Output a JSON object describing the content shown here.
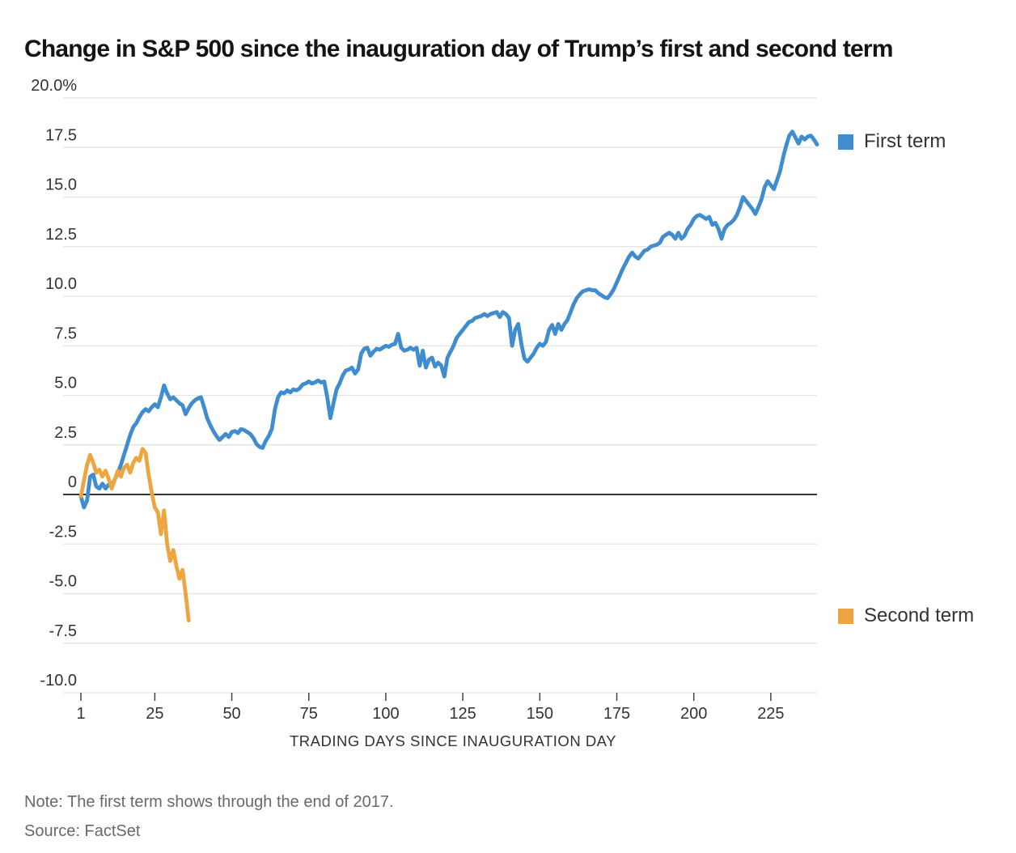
{
  "title": "Change in S&P 500 since the inauguration day of Trump’s first and second term",
  "note": "Note: The first term shows through the end of 2017.",
  "source": "Source: FactSet",
  "legend": [
    {
      "label": "First term",
      "color": "#3f8dce"
    },
    {
      "label": "Second term",
      "color": "#eda63f"
    }
  ],
  "chart_data": {
    "type": "line",
    "title": "Change in S&P 500 since the inauguration day of Trump’s first and second term",
    "xlabel": "TRADING DAYS SINCE INAUGURATION DAY",
    "ylabel": "",
    "grid": true,
    "zero_line": true,
    "legend_position": "right",
    "x_axis": {
      "min": 1,
      "max": 240,
      "ticks": [
        1,
        25,
        50,
        75,
        100,
        125,
        150,
        175,
        200,
        225
      ]
    },
    "y_axis": {
      "min": -10,
      "max": 20,
      "step": 2.5,
      "ticks": [
        {
          "value": 20,
          "label": "20.0%"
        },
        {
          "value": 17.5,
          "label": "17.5"
        },
        {
          "value": 15,
          "label": "15.0"
        },
        {
          "value": 12.5,
          "label": "12.5"
        },
        {
          "value": 10,
          "label": "10.0"
        },
        {
          "value": 7.5,
          "label": "7.5"
        },
        {
          "value": 5,
          "label": "5.0"
        },
        {
          "value": 2.5,
          "label": "2.5"
        },
        {
          "value": 0,
          "label": "0"
        },
        {
          "value": -2.5,
          "label": "-2.5"
        },
        {
          "value": -5,
          "label": "-5.0"
        },
        {
          "value": -7.5,
          "label": "-7.5"
        },
        {
          "value": -10,
          "label": "-10.0"
        }
      ]
    },
    "series": [
      {
        "name": "First term",
        "color": "#3f8dce",
        "start_day": 1,
        "values": [
          -0.1,
          -0.65,
          -0.3,
          0.9,
          1.0,
          0.4,
          0.3,
          0.55,
          0.3,
          0.5,
          0.45,
          0.75,
          1.1,
          1.5,
          2.0,
          2.5,
          3.0,
          3.4,
          3.6,
          3.9,
          4.15,
          4.3,
          4.2,
          4.4,
          4.55,
          4.4,
          4.9,
          5.5,
          5.1,
          4.8,
          4.9,
          4.75,
          4.6,
          4.5,
          4.05,
          4.35,
          4.6,
          4.75,
          4.85,
          4.9,
          4.4,
          3.85,
          3.5,
          3.2,
          2.95,
          2.75,
          2.9,
          3.05,
          2.9,
          3.15,
          3.2,
          3.1,
          3.3,
          3.25,
          3.15,
          3.05,
          2.85,
          2.55,
          2.4,
          2.35,
          2.7,
          2.95,
          3.3,
          4.3,
          4.9,
          5.15,
          5.1,
          5.25,
          5.15,
          5.3,
          5.25,
          5.35,
          5.55,
          5.6,
          5.7,
          5.6,
          5.65,
          5.75,
          5.65,
          5.7,
          4.9,
          3.85,
          4.6,
          5.3,
          5.6,
          6.0,
          6.25,
          6.3,
          6.4,
          6.1,
          6.3,
          7.1,
          7.35,
          7.4,
          7.0,
          7.2,
          7.35,
          7.3,
          7.4,
          7.5,
          7.45,
          7.55,
          7.6,
          8.1,
          7.4,
          7.25,
          7.3,
          7.4,
          7.3,
          7.4,
          6.5,
          7.25,
          6.4,
          6.8,
          6.9,
          6.45,
          6.65,
          6.5,
          5.95,
          6.9,
          7.2,
          7.5,
          7.9,
          8.1,
          8.3,
          8.5,
          8.7,
          8.75,
          8.9,
          8.95,
          9.0,
          9.1,
          9.0,
          9.1,
          9.15,
          9.2,
          8.95,
          9.2,
          9.1,
          8.9,
          7.5,
          8.3,
          8.6,
          7.6,
          6.85,
          6.7,
          6.9,
          7.1,
          7.4,
          7.6,
          7.5,
          7.7,
          8.3,
          8.55,
          8.1,
          8.6,
          8.3,
          8.6,
          8.8,
          9.2,
          9.6,
          9.9,
          10.1,
          10.25,
          10.3,
          10.35,
          10.3,
          10.3,
          10.15,
          10.05,
          9.95,
          9.9,
          10.1,
          10.35,
          10.7,
          11.05,
          11.4,
          11.7,
          12.0,
          12.2,
          12.0,
          11.9,
          12.1,
          12.3,
          12.35,
          12.5,
          12.55,
          12.6,
          12.7,
          13.0,
          13.1,
          13.2,
          13.1,
          12.9,
          13.2,
          12.9,
          13.05,
          13.4,
          13.6,
          13.9,
          14.05,
          14.1,
          14.0,
          13.9,
          14.0,
          13.6,
          13.7,
          13.4,
          12.9,
          13.4,
          13.6,
          13.7,
          13.85,
          14.1,
          14.5,
          15.0,
          14.8,
          14.6,
          14.4,
          14.15,
          14.5,
          14.9,
          15.5,
          15.8,
          15.6,
          15.4,
          15.85,
          16.3,
          17.0,
          17.6,
          18.1,
          18.3,
          18.0,
          17.7,
          18.05,
          17.9,
          18.05,
          18.1,
          17.9,
          17.65
        ]
      },
      {
        "name": "Second term",
        "color": "#eda63f",
        "start_day": 1,
        "values": [
          -0.1,
          0.7,
          1.5,
          2.0,
          1.6,
          1.1,
          1.25,
          0.9,
          1.2,
          0.8,
          0.3,
          0.75,
          1.2,
          0.9,
          1.35,
          1.5,
          1.1,
          1.6,
          1.85,
          1.7,
          2.3,
          2.1,
          1.0,
          0.1,
          -0.65,
          -0.9,
          -2.0,
          -0.8,
          -2.5,
          -3.35,
          -2.8,
          -3.6,
          -4.25,
          -3.8,
          -5.0,
          -6.35
        ]
      }
    ]
  }
}
